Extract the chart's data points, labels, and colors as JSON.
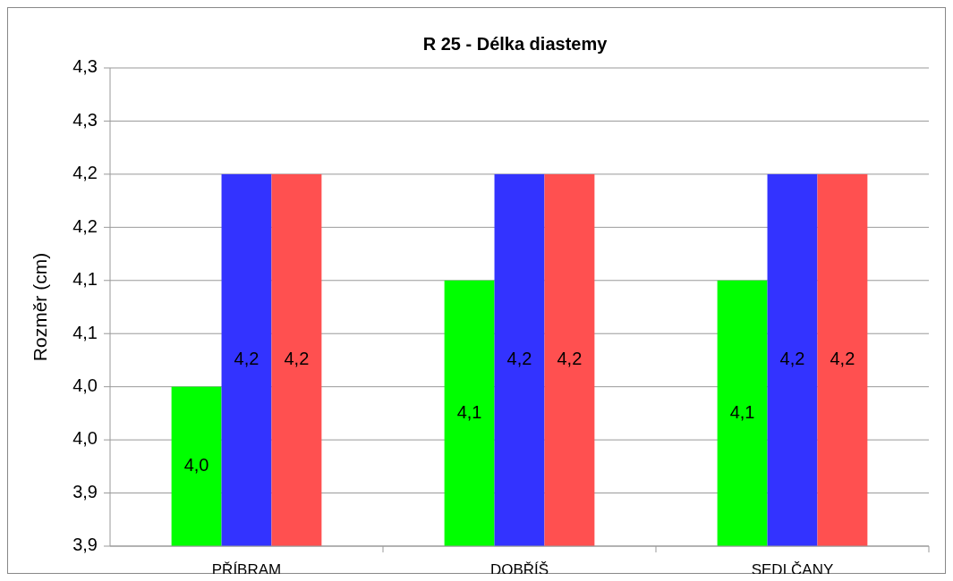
{
  "chart_data": {
    "type": "bar",
    "title": "R 25 - Délka diastemy",
    "ylabel": "Rozměr (cm)",
    "categories": [
      "PŘÍBRAM",
      "DOBŘÍŠ",
      "SEDLČANY"
    ],
    "series": [
      {
        "color": "#00ff00",
        "values": [
          4.0,
          4.1,
          4.1
        ],
        "value_labels": [
          "4,0",
          "4,1",
          "4,1"
        ]
      },
      {
        "color": "#3333ff",
        "values": [
          4.2,
          4.2,
          4.2
        ],
        "value_labels": [
          "4,2",
          "4,2",
          "4,2"
        ]
      },
      {
        "color": "#ff5050",
        "values": [
          4.2,
          4.2,
          4.2
        ],
        "value_labels": [
          "4,2",
          "4,2",
          "4,2"
        ]
      }
    ],
    "ylim": [
      3.85,
      4.3
    ],
    "yticks": [
      {
        "value": 3.85,
        "label": "3,9"
      },
      {
        "value": 3.9,
        "label": "3,9"
      },
      {
        "value": 3.95,
        "label": "4,0"
      },
      {
        "value": 4.0,
        "label": "4,0"
      },
      {
        "value": 4.05,
        "label": "4,1"
      },
      {
        "value": 4.1,
        "label": "4,1"
      },
      {
        "value": 4.15,
        "label": "4,2"
      },
      {
        "value": 4.2,
        "label": "4,2"
      },
      {
        "value": 4.25,
        "label": "4,3"
      },
      {
        "value": 4.3,
        "label": "4,3"
      }
    ],
    "grid": "y"
  }
}
